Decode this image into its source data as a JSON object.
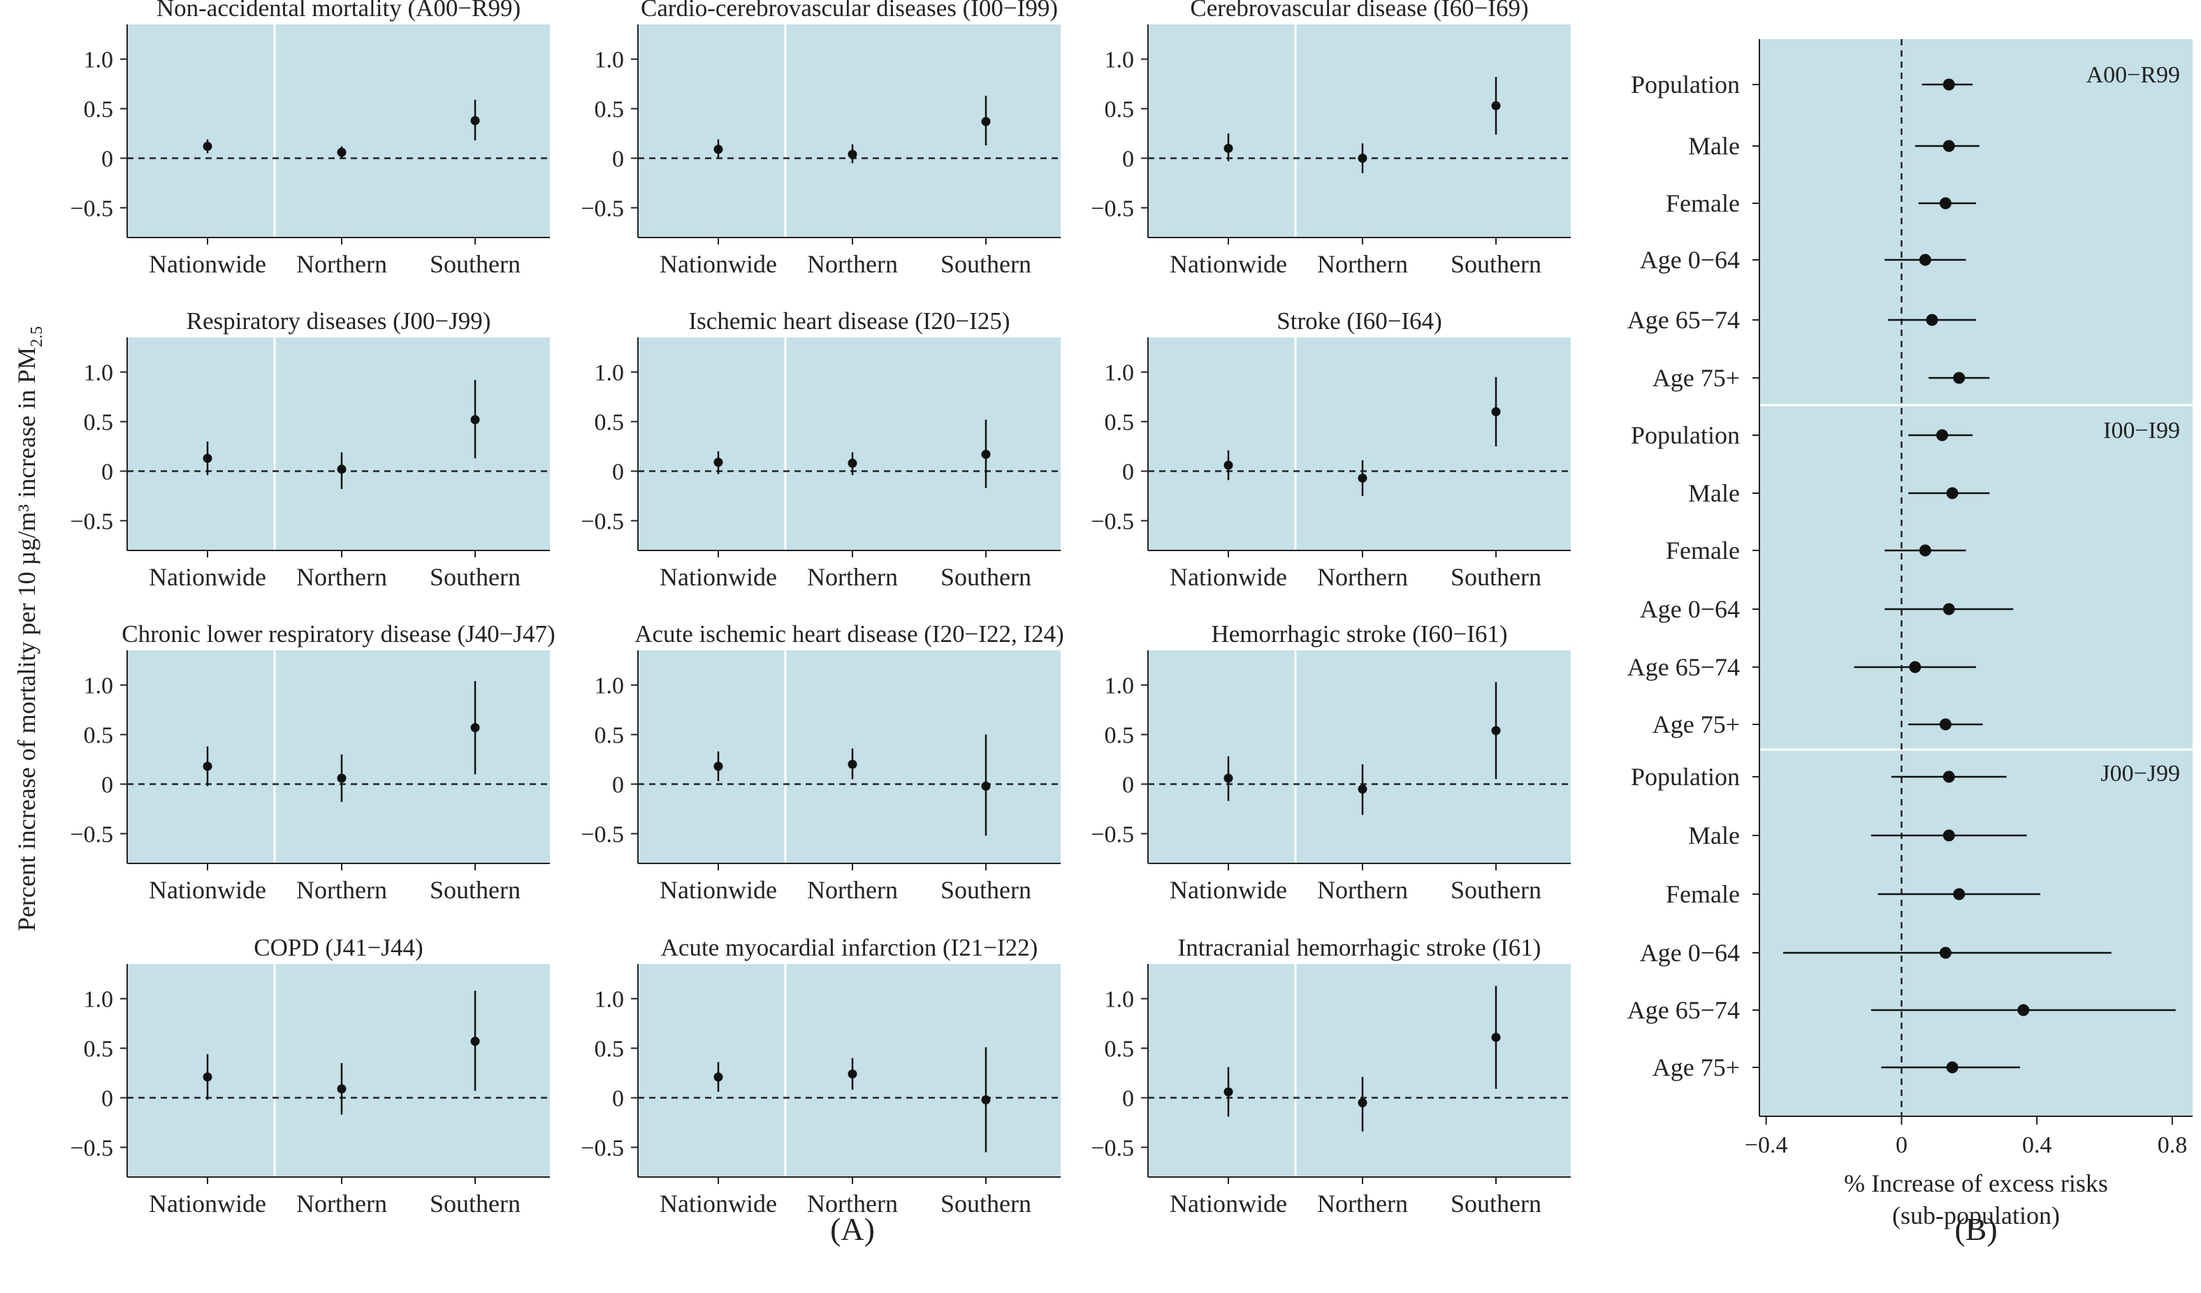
{
  "chart_data": [
    {
      "panel": "(A)",
      "type": "scatter",
      "ylabel": "Percent increase of mortality per 10 µg/m³ increase in PM",
      "ylabel_sub": "2.5",
      "categories": [
        "Nationwide",
        "Northern",
        "Southern"
      ],
      "yticks": [
        1.0,
        0.5,
        0,
        -0.5
      ],
      "ytick_labels": [
        "1.0",
        "0.5",
        "0",
        "−0.5"
      ],
      "ylim": [
        -0.8,
        1.35
      ],
      "reference_line": 0,
      "subplots": [
        {
          "title": "Non-accidental mortality (A00−R99)",
          "est": [
            0.12,
            0.06,
            0.38
          ],
          "lo": [
            0.05,
            0.0,
            0.18
          ],
          "hi": [
            0.19,
            0.12,
            0.59
          ]
        },
        {
          "title": "Cardio-cerebrovascular diseases (I00−I99)",
          "est": [
            0.09,
            0.04,
            0.37
          ],
          "lo": [
            0.0,
            -0.05,
            0.13
          ],
          "hi": [
            0.19,
            0.14,
            0.63
          ]
        },
        {
          "title": "Cerebrovascular disease (I60−I69)",
          "est": [
            0.1,
            0.0,
            0.53
          ],
          "lo": [
            -0.03,
            -0.15,
            0.24
          ],
          "hi": [
            0.25,
            0.15,
            0.82
          ]
        },
        {
          "title": "Respiratory diseases (J00−J99)",
          "est": [
            0.13,
            0.02,
            0.52
          ],
          "lo": [
            -0.04,
            -0.18,
            0.13
          ],
          "hi": [
            0.3,
            0.19,
            0.92
          ]
        },
        {
          "title": "Ischemic heart disease (I20−I25)",
          "est": [
            0.09,
            0.08,
            0.17
          ],
          "lo": [
            -0.03,
            -0.04,
            -0.17
          ],
          "hi": [
            0.2,
            0.19,
            0.52
          ]
        },
        {
          "title": "Stroke (I60−I64)",
          "est": [
            0.06,
            -0.07,
            0.6
          ],
          "lo": [
            -0.09,
            -0.25,
            0.25
          ],
          "hi": [
            0.21,
            0.11,
            0.95
          ]
        },
        {
          "title": "Chronic lower respiratory disease (J40−J47)",
          "est": [
            0.18,
            0.06,
            0.57
          ],
          "lo": [
            -0.02,
            -0.18,
            0.1
          ],
          "hi": [
            0.38,
            0.3,
            1.04
          ]
        },
        {
          "title": "Acute ischemic heart disease (I20−I22, I24)",
          "est": [
            0.18,
            0.2,
            -0.02
          ],
          "lo": [
            0.03,
            0.05,
            -0.52
          ],
          "hi": [
            0.33,
            0.36,
            0.5
          ]
        },
        {
          "title": "Hemorrhagic stroke (I60−I61)",
          "est": [
            0.06,
            -0.05,
            0.54
          ],
          "lo": [
            -0.17,
            -0.31,
            0.05
          ],
          "hi": [
            0.28,
            0.2,
            1.03
          ]
        },
        {
          "title": "COPD (J41−J44)",
          "est": [
            0.21,
            0.09,
            0.57
          ],
          "lo": [
            -0.02,
            -0.17,
            0.07
          ],
          "hi": [
            0.44,
            0.35,
            1.08
          ]
        },
        {
          "title": "Acute myocardial infarction (I21−I22)",
          "est": [
            0.21,
            0.24,
            -0.02
          ],
          "lo": [
            0.06,
            0.08,
            -0.55
          ],
          "hi": [
            0.36,
            0.4,
            0.51
          ]
        },
        {
          "title": "Intracranial hemorrhagic stroke (I61)",
          "est": [
            0.06,
            -0.05,
            0.61
          ],
          "lo": [
            -0.19,
            -0.34,
            0.09
          ],
          "hi": [
            0.31,
            0.21,
            1.13
          ]
        }
      ]
    },
    {
      "panel": "(B)",
      "type": "scatter",
      "xlabel": "% Increase of excess risks",
      "xlabel2": "(sub-population)",
      "xticks": [
        -0.4,
        0,
        0.4,
        0.8
      ],
      "xtick_labels": [
        "−0.4",
        "0",
        "0.4",
        "0.8"
      ],
      "xlim": [
        -0.42,
        0.86
      ],
      "reference_line": 0,
      "groups": [
        {
          "name": "A00−R99",
          "rows": [
            {
              "label": "Population",
              "est": 0.14,
              "lo": 0.06,
              "hi": 0.21
            },
            {
              "label": "Male",
              "est": 0.14,
              "lo": 0.04,
              "hi": 0.23
            },
            {
              "label": "Female",
              "est": 0.13,
              "lo": 0.05,
              "hi": 0.22
            },
            {
              "label": "Age 0−64",
              "est": 0.07,
              "lo": -0.05,
              "hi": 0.19
            },
            {
              "label": "Age 65−74",
              "est": 0.09,
              "lo": -0.04,
              "hi": 0.22
            },
            {
              "label": "Age 75+",
              "est": 0.17,
              "lo": 0.08,
              "hi": 0.26
            }
          ]
        },
        {
          "name": "I00−I99",
          "rows": [
            {
              "label": "Population",
              "est": 0.12,
              "lo": 0.02,
              "hi": 0.21
            },
            {
              "label": "Male",
              "est": 0.15,
              "lo": 0.02,
              "hi": 0.26
            },
            {
              "label": "Female",
              "est": 0.07,
              "lo": -0.05,
              "hi": 0.19
            },
            {
              "label": "Age 0−64",
              "est": 0.14,
              "lo": -0.05,
              "hi": 0.33
            },
            {
              "label": "Age 65−74",
              "est": 0.04,
              "lo": -0.14,
              "hi": 0.22
            },
            {
              "label": "Age 75+",
              "est": 0.13,
              "lo": 0.02,
              "hi": 0.24
            }
          ]
        },
        {
          "name": "J00−J99",
          "rows": [
            {
              "label": "Population",
              "est": 0.14,
              "lo": -0.03,
              "hi": 0.31
            },
            {
              "label": "Male",
              "est": 0.14,
              "lo": -0.09,
              "hi": 0.37
            },
            {
              "label": "Female",
              "est": 0.17,
              "lo": -0.07,
              "hi": 0.41
            },
            {
              "label": "Age 0−64",
              "est": 0.13,
              "lo": -0.35,
              "hi": 0.62
            },
            {
              "label": "Age 65−74",
              "est": 0.36,
              "lo": -0.09,
              "hi": 0.81
            },
            {
              "label": "Age 75+",
              "est": 0.15,
              "lo": -0.06,
              "hi": 0.35
            }
          ]
        }
      ]
    }
  ]
}
